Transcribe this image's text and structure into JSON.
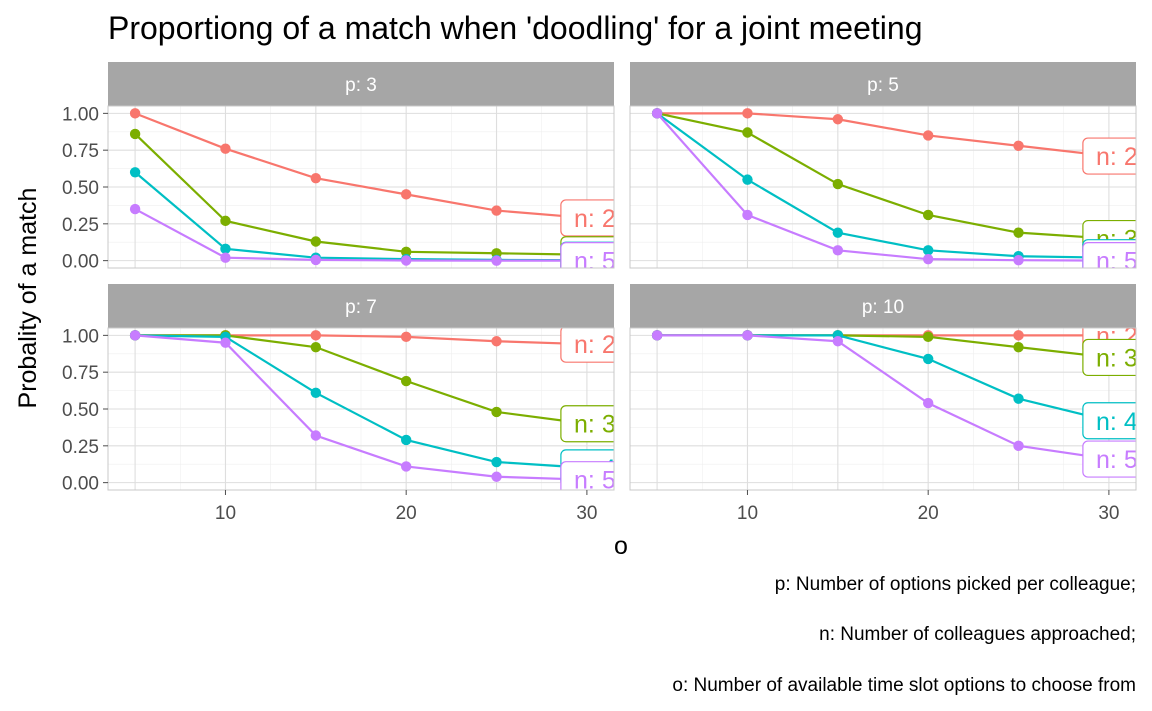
{
  "chart_data": {
    "type": "line",
    "title": "Proportiong of a match when 'doodling' for a joint meeting",
    "xlabel": "o",
    "ylabel": "Probality of a match",
    "x": [
      5,
      10,
      15,
      20,
      25,
      30
    ],
    "xlim": [
      3.5,
      31.5
    ],
    "ylim": [
      -0.05,
      1.05
    ],
    "x_ticks": [
      "10",
      "20",
      "30"
    ],
    "y_ticks": [
      "0.00",
      "0.25",
      "0.50",
      "0.75",
      "1.00"
    ],
    "grid": true,
    "colors": {
      "n: 2": "#F8766D",
      "n: 3": "#7CAE00",
      "n: 4": "#00BFC4",
      "n: 5": "#C77CFF"
    },
    "captions": [
      "p: Number of options picked per colleague;",
      "n: Number of colleagues approached;",
      "o: Number of available time slot options to choose from"
    ],
    "panels": [
      {
        "strip": "p: 3",
        "series": [
          {
            "name": "n: 2",
            "values": [
              1.0,
              0.76,
              0.56,
              0.45,
              0.34,
              0.29
            ]
          },
          {
            "name": "n: 3",
            "values": [
              0.86,
              0.27,
              0.13,
              0.06,
              0.05,
              0.04
            ]
          },
          {
            "name": "n: 4",
            "values": [
              0.6,
              0.08,
              0.02,
              0.01,
              0.005,
              0.003
            ]
          },
          {
            "name": "n: 5",
            "values": [
              0.35,
              0.02,
              0.005,
              0.001,
              0.0,
              0.0
            ]
          }
        ]
      },
      {
        "strip": "p: 5",
        "series": [
          {
            "name": "n: 2",
            "values": [
              1.0,
              1.0,
              0.96,
              0.85,
              0.78,
              0.71
            ]
          },
          {
            "name": "n: 3",
            "values": [
              1.0,
              0.87,
              0.52,
              0.31,
              0.19,
              0.15
            ]
          },
          {
            "name": "n: 4",
            "values": [
              1.0,
              0.55,
              0.19,
              0.07,
              0.03,
              0.02
            ]
          },
          {
            "name": "n: 5",
            "values": [
              1.0,
              0.31,
              0.07,
              0.01,
              0.003,
              0.0
            ]
          }
        ]
      },
      {
        "strip": "p: 7",
        "series": [
          {
            "name": "n: 2",
            "values": [
              1.0,
              1.0,
              1.0,
              0.99,
              0.96,
              0.94
            ]
          },
          {
            "name": "n: 3",
            "values": [
              1.0,
              1.0,
              0.92,
              0.69,
              0.48,
              0.4
            ]
          },
          {
            "name": "n: 4",
            "values": [
              1.0,
              0.99,
              0.61,
              0.29,
              0.14,
              0.1
            ]
          },
          {
            "name": "n: 5",
            "values": [
              1.0,
              0.95,
              0.32,
              0.11,
              0.04,
              0.02
            ]
          }
        ]
      },
      {
        "strip": "p: 10",
        "series": [
          {
            "name": "n: 2",
            "values": [
              1.0,
              1.0,
              1.0,
              1.0,
              1.0,
              1.0
            ]
          },
          {
            "name": "n: 3",
            "values": [
              1.0,
              1.0,
              1.0,
              0.99,
              0.92,
              0.85
            ]
          },
          {
            "name": "n: 4",
            "values": [
              1.0,
              1.0,
              1.0,
              0.84,
              0.57,
              0.42
            ]
          },
          {
            "name": "n: 5",
            "values": [
              1.0,
              1.0,
              0.96,
              0.54,
              0.25,
              0.16
            ]
          }
        ]
      }
    ]
  }
}
